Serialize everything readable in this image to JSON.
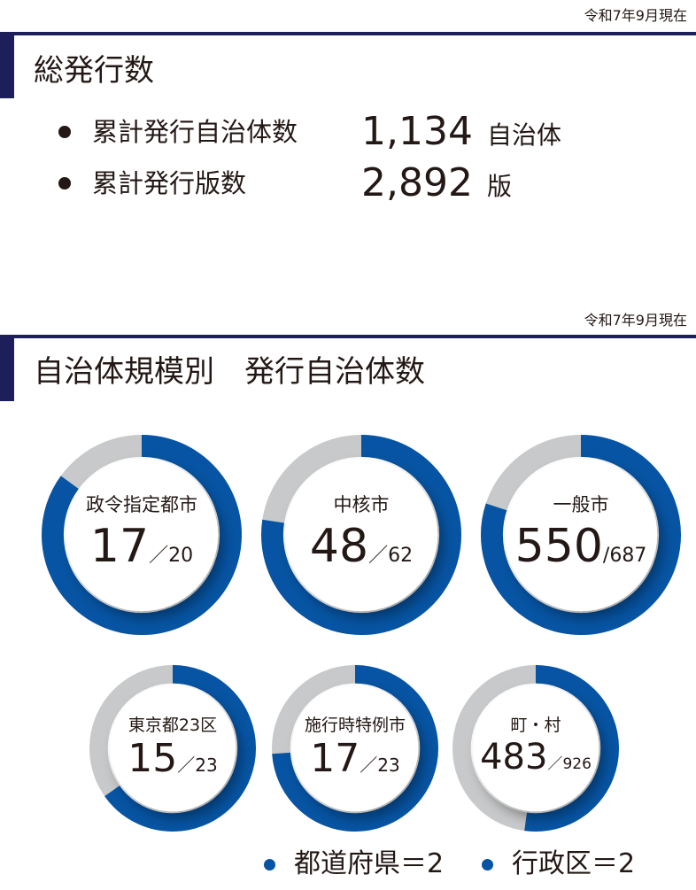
{
  "colors": {
    "navy": "#1c1f5a",
    "blue": "#0654a3",
    "gray": "#c8c9ca",
    "text": "#231815"
  },
  "section1": {
    "as_of": "令和7年9月現在",
    "title": "総発行数",
    "stats": [
      {
        "label": "累計発行自治体数",
        "value": "1,134",
        "unit": "自治体"
      },
      {
        "label": "累計発行版数",
        "value": "2,892",
        "unit": "版"
      }
    ]
  },
  "section2": {
    "as_of": "令和7年9月現在",
    "title": "自治体規模別　発行自治体数"
  },
  "chart_data": {
    "type": "pie",
    "variant": "donut",
    "series": [
      {
        "name": "政令指定都市",
        "value": 17,
        "total": 20,
        "value_text": "17",
        "total_text": "／20"
      },
      {
        "name": "中核市",
        "value": 48,
        "total": 62,
        "value_text": "48",
        "total_text": "／62"
      },
      {
        "name": "一般市",
        "value": 550,
        "total": 687,
        "value_text": "550",
        "total_text": "/687"
      },
      {
        "name": "東京都23区",
        "value": 15,
        "total": 23,
        "value_text": "15",
        "total_text": "／23"
      },
      {
        "name": "施行時特例市",
        "value": 17,
        "total": 23,
        "value_text": "17",
        "total_text": "／23"
      },
      {
        "name": "町・村",
        "value": 483,
        "total": 926,
        "value_text": "483",
        "total_text": "／926"
      }
    ],
    "filled_color": "#0654a3",
    "remaining_color": "#c8c9ca"
  },
  "legend": [
    {
      "label": "都道府県＝2",
      "color": "#0654a3"
    },
    {
      "label": "行政区＝2",
      "color": "#0654a3"
    }
  ]
}
